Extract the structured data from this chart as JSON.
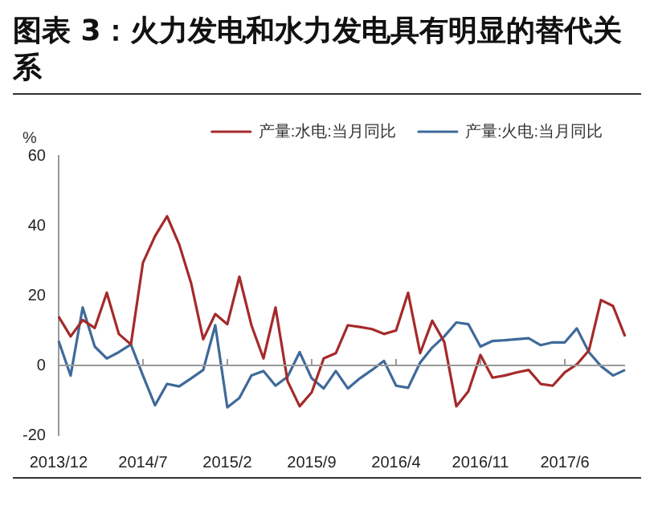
{
  "chart_data": {
    "type": "line",
    "title": "图表 3：火力发电和水力发电具有明显的替代关系",
    "ylabel": "%",
    "categories": [
      "2013/12",
      null,
      null,
      null,
      null,
      null,
      null,
      "2014/7",
      null,
      null,
      null,
      null,
      null,
      null,
      "2015/2",
      null,
      null,
      null,
      null,
      null,
      null,
      "2015/9",
      null,
      null,
      null,
      null,
      null,
      null,
      "2016/4",
      null,
      null,
      null,
      null,
      null,
      null,
      "2016/11",
      null,
      null,
      null,
      null,
      null,
      null,
      "2017/6",
      null,
      null,
      null,
      null,
      null
    ],
    "series": [
      {
        "name": "产量:水电:当月同比",
        "color": "#a52a2a",
        "values": [
          14,
          8.3,
          13,
          10.7,
          20.8,
          9,
          6,
          29.4,
          37,
          42.7,
          34.7,
          23.5,
          7.5,
          14.7,
          11.8,
          25.4,
          11.5,
          2,
          16.6,
          -4.5,
          -11.7,
          -7.7,
          2,
          3.5,
          11.5,
          11,
          10.4,
          9,
          10,
          20.8,
          3.5,
          12.8,
          6.7,
          -11.7,
          -7.4,
          3,
          -3.5,
          -2.9,
          -2,
          -1.3,
          -5.3,
          -5.8,
          -2,
          0.3,
          4.3,
          18.7,
          17,
          8.3
        ]
      },
      {
        "name": "产量:火电:当月同比",
        "color": "#3f6a9a",
        "values": [
          7,
          -2.9,
          16.6,
          5.4,
          2,
          3.8,
          6,
          -2.9,
          -11.4,
          -5.3,
          -6,
          -3.7,
          -1.3,
          11.5,
          -12,
          -9.3,
          -2.9,
          -1.6,
          -5.8,
          -3.2,
          3.8,
          -3.7,
          -6.6,
          -1.6,
          -6.6,
          -3.7,
          -1.3,
          1.3,
          -5.8,
          -6.4,
          0.8,
          5.1,
          8.3,
          12.3,
          11.8,
          5.4,
          7,
          7.2,
          7.5,
          7.8,
          5.8,
          6.6,
          6.6,
          10.6,
          3.8,
          -0.2,
          -2.9,
          -1.3
        ]
      }
    ],
    "ylim": [
      -20,
      60
    ],
    "yticks": [
      -20,
      0,
      20,
      40,
      60
    ],
    "legend": "top",
    "marker": "none",
    "line_style": "solid"
  }
}
